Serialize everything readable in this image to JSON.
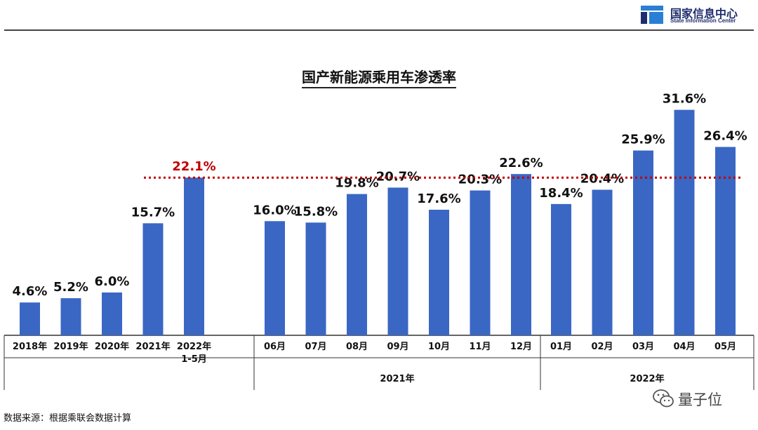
{
  "header": {
    "org_name_cn": "国家信息中心",
    "org_name_en": "State Information Center"
  },
  "footer": {
    "source": "数据来源：根据乘联会数据计算",
    "watermark": "量子位"
  },
  "chart_data": {
    "type": "bar",
    "title": "国产新能源乘用车渗透率",
    "xlabel": "",
    "ylabel": "",
    "ylim": [
      0,
      35
    ],
    "unit": "%",
    "reference_line": {
      "value": 22.1,
      "color": "#c00000",
      "style": "dotted"
    },
    "bar_color": "#3a67c4",
    "highlight_label_color": "#c00000",
    "groups": [
      {
        "name": "",
        "categories": [
          "2018年",
          "2019年",
          "2020年",
          "2021年",
          "2022年\n1-5月"
        ],
        "values": [
          4.6,
          5.2,
          6.0,
          15.7,
          22.1
        ],
        "labels": [
          "4.6%",
          "5.2%",
          "6.0%",
          "15.7%",
          "22.1%"
        ]
      },
      {
        "name": "2021年",
        "categories": [
          "06月",
          "07月",
          "08月",
          "09月",
          "10月",
          "11月",
          "12月"
        ],
        "values": [
          16.0,
          15.8,
          19.8,
          20.7,
          17.6,
          20.3,
          22.6
        ],
        "labels": [
          "16.0%",
          "15.8%",
          "19.8%",
          "20.7%",
          "17.6%",
          "20.3%",
          "22.6%"
        ]
      },
      {
        "name": "2022年",
        "categories": [
          "01月",
          "02月",
          "03月",
          "04月",
          "05月"
        ],
        "values": [
          18.4,
          20.4,
          25.9,
          31.6,
          26.4
        ],
        "labels": [
          "18.4%",
          "20.4%",
          "25.9%",
          "31.6%",
          "26.4%"
        ]
      }
    ]
  }
}
